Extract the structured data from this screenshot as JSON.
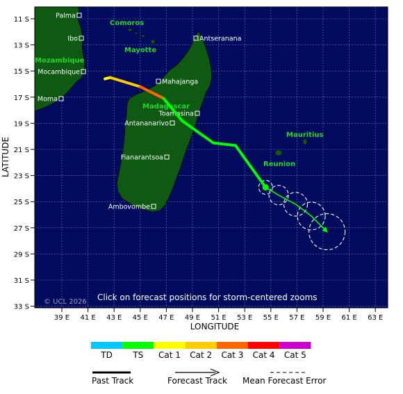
{
  "map": {
    "copyright": "© UCL 2026",
    "notice": "Click on forecast positions for storm-centered zooms",
    "xlabel": "LONGITUDE",
    "ylabel": "LATITUDE",
    "lon_ticks": [
      "39 E",
      "41 E",
      "43 E",
      "45 E",
      "47 E",
      "49 E",
      "51 E",
      "53 E",
      "55 E",
      "57 E",
      "59 E",
      "61 E",
      "63 E"
    ],
    "lat_ticks": [
      "11 S",
      "13 S",
      "15 S",
      "17 S",
      "19 S",
      "21 S",
      "23 S",
      "25 S",
      "27 S",
      "29 S",
      "31 S",
      "33 S"
    ],
    "colors": {
      "ocean": "#000b5e",
      "land": "#0f5a13",
      "region_label": "#22d62a",
      "grid": "#6f7bb5"
    }
  },
  "places": {
    "palma": "Palma",
    "ibo": "Ibo",
    "mocambique": "Mocambique",
    "moma": "Moma",
    "antseranana": "Antseranana",
    "mahajanga": "Mahajanga",
    "toamasina": "Toamasina",
    "antananarivo": "Antananarivo",
    "fianarantsoa": "Fianarantsoa",
    "ambovombe": "Ambovombe"
  },
  "regions": {
    "comoros": "Comoros",
    "mayotte": "Mayotte",
    "mozambique": "Mozambique",
    "madagascar": "Madagascar",
    "mauritius": "Mauritius",
    "reunion": "Reunion"
  },
  "legend": {
    "scale": [
      {
        "label": "TD",
        "color": "#00c8ff"
      },
      {
        "label": "TS",
        "color": "#00ff00"
      },
      {
        "label": "Cat 1",
        "color": "#ffff00"
      },
      {
        "label": "Cat 2",
        "color": "#ffcc00"
      },
      {
        "label": "Cat 3",
        "color": "#ff6600"
      },
      {
        "label": "Cat 4",
        "color": "#ff0000"
      },
      {
        "label": "Cat 5",
        "color": "#cc00cc"
      }
    ],
    "past_track": "Past Track",
    "forecast_track": "Forecast Track",
    "error": "Mean Forecast Error"
  },
  "track": {
    "past": [
      {
        "lon": 42.3,
        "lat": -15.6,
        "cat": "TS"
      },
      {
        "lon": 42.7,
        "lat": -15.5,
        "cat": "Cat 1"
      },
      {
        "lon": 45.0,
        "lat": -16.2,
        "cat": "Cat 2"
      },
      {
        "lon": 46.8,
        "lat": -17.1,
        "cat": "Cat 3"
      },
      {
        "lon": 48.2,
        "lat": -18.8,
        "cat": "TS"
      },
      {
        "lon": 50.6,
        "lat": -20.5,
        "cat": "TS"
      },
      {
        "lon": 52.3,
        "lat": -20.7,
        "cat": "TS"
      },
      {
        "lon": 54.6,
        "lat": -23.9,
        "cat": "TS"
      }
    ],
    "forecast": [
      {
        "lon": 54.6,
        "lat": -23.9
      },
      {
        "lon": 55.6,
        "lat": -24.5
      },
      {
        "lon": 56.9,
        "lat": -25.2
      },
      {
        "lon": 58.1,
        "lat": -26.1
      },
      {
        "lon": 59.3,
        "lat": -27.3
      }
    ]
  }
}
